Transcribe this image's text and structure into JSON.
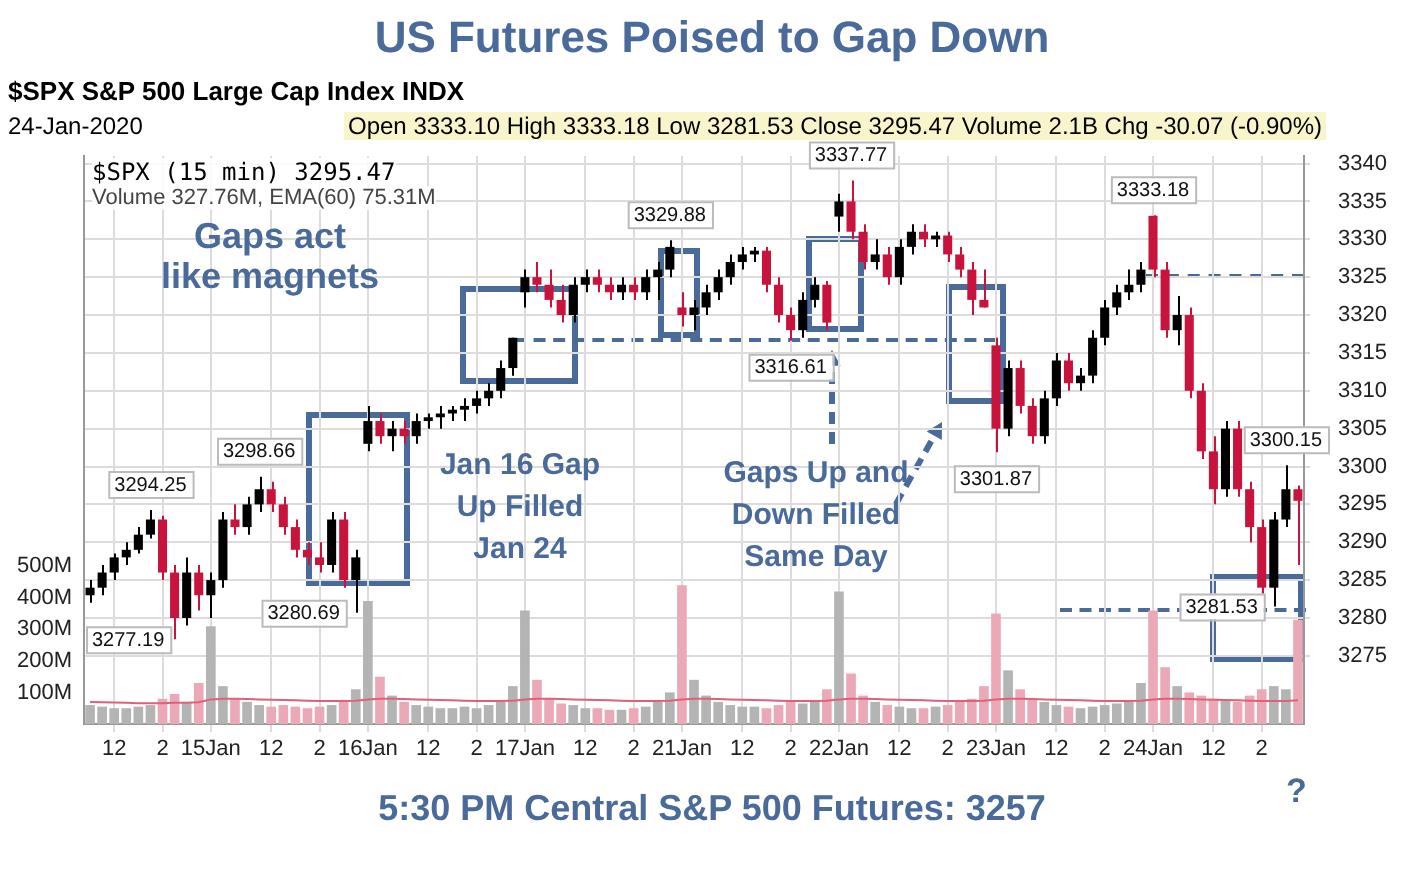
{
  "chart_data": {
    "type": "candlestick",
    "title": "US Futures Poised to Gap Down",
    "categories": [
      null,
      null,
      "12",
      null,
      null,
      null,
      "2",
      null,
      null,
      null,
      "15Jan",
      null,
      null,
      null,
      null,
      "12",
      null,
      null,
      null,
      "2",
      null,
      null,
      null,
      "16Jan",
      null,
      null,
      null,
      null,
      "12",
      null,
      null,
      null,
      "2",
      null,
      null,
      null,
      "17Jan",
      null,
      null,
      null,
      null,
      "12",
      null,
      null,
      null,
      "2",
      null,
      null,
      null,
      "21Jan",
      null,
      null,
      null,
      null,
      "12",
      null,
      null,
      null,
      "2",
      null,
      null,
      null,
      "22Jan",
      null,
      null,
      null,
      null,
      "12",
      null,
      null,
      null,
      "2",
      null,
      null,
      null,
      "23Jan",
      null,
      null,
      null,
      null,
      "12",
      null,
      null,
      null,
      "2",
      null,
      null,
      null,
      "24Jan",
      null,
      null,
      null,
      null,
      "12",
      null,
      null,
      null,
      "2",
      null,
      null,
      null
    ],
    "series": [
      {
        "ohlc": [
          [
            3283,
            3285,
            3282,
            3284
          ],
          [
            3284,
            3287,
            3283,
            3286
          ],
          [
            3286,
            3288.5,
            3285,
            3288
          ],
          [
            3288,
            3290,
            3287,
            3289
          ],
          [
            3289,
            3292,
            3288.5,
            3291
          ],
          [
            3291,
            3294.25,
            3290.5,
            3293
          ],
          [
            3293,
            3293.5,
            3285,
            3286
          ],
          [
            3286,
            3287,
            3277.19,
            3280
          ],
          [
            3280,
            3288,
            3279,
            3286
          ],
          [
            3286,
            3287,
            3281,
            3283
          ],
          [
            3283,
            3286,
            3280,
            3285
          ],
          [
            3285,
            3294,
            3284,
            3293
          ],
          [
            3293,
            3295,
            3291,
            3292
          ],
          [
            3292,
            3296,
            3291,
            3295
          ],
          [
            3295,
            3298.66,
            3294,
            3297
          ],
          [
            3297,
            3298,
            3294,
            3295
          ],
          [
            3295,
            3296,
            3291,
            3292
          ],
          [
            3292,
            3293,
            3288,
            3289
          ],
          [
            3289,
            3290,
            3287,
            3288
          ],
          [
            3288,
            3290,
            3286,
            3287
          ],
          [
            3287,
            3294,
            3286,
            3293
          ],
          [
            3293,
            3294,
            3284,
            3285
          ],
          [
            3285,
            3289,
            3280.69,
            3288
          ],
          [
            3303,
            3308,
            3302,
            3306
          ],
          [
            3306,
            3307,
            3303,
            3304
          ],
          [
            3304,
            3306,
            3302,
            3305
          ],
          [
            3305,
            3306,
            3303,
            3304
          ],
          [
            3304,
            3307,
            3303,
            3306
          ],
          [
            3306,
            3307,
            3305,
            3306.5
          ],
          [
            3306.5,
            3308,
            3305,
            3307
          ],
          [
            3307,
            3308,
            3306,
            3307.5
          ],
          [
            3307.5,
            3309,
            3306,
            3308
          ],
          [
            3308,
            3310,
            3307,
            3309
          ],
          [
            3309,
            3311,
            3308,
            3310
          ],
          [
            3310,
            3314,
            3309,
            3313
          ],
          [
            3313,
            3317,
            3312,
            3317
          ],
          [
            3323,
            3326,
            3321,
            3325
          ],
          [
            3325,
            3327,
            3323,
            3324
          ],
          [
            3324,
            3326,
            3321,
            3322
          ],
          [
            3322,
            3324,
            3319,
            3320
          ],
          [
            3320,
            3325,
            3319,
            3324
          ],
          [
            3324,
            3326,
            3323,
            3325
          ],
          [
            3325,
            3326,
            3323,
            3324
          ],
          [
            3324,
            3325,
            3322,
            3323
          ],
          [
            3323,
            3325,
            3322,
            3324
          ],
          [
            3324,
            3325,
            3322,
            3323
          ],
          [
            3323,
            3326,
            3322,
            3325
          ],
          [
            3325,
            3327,
            3322,
            3326
          ],
          [
            3326,
            3329.88,
            3325,
            3329
          ],
          [
            3321,
            3323,
            3318.5,
            3320
          ],
          [
            3320,
            3322,
            3318,
            3321
          ],
          [
            3321,
            3324,
            3320,
            3323
          ],
          [
            3323,
            3326,
            3322,
            3325
          ],
          [
            3325,
            3328,
            3324,
            3327
          ],
          [
            3327,
            3329,
            3326,
            3328
          ],
          [
            3328,
            3329,
            3327,
            3328.5
          ],
          [
            3328.5,
            3329,
            3323,
            3324
          ],
          [
            3324,
            3325,
            3319,
            3320
          ],
          [
            3320,
            3321,
            3316.61,
            3318
          ],
          [
            3318,
            3323,
            3317,
            3322
          ],
          [
            3322,
            3325,
            3321,
            3324
          ],
          [
            3324,
            3324.5,
            3318,
            3319
          ],
          [
            3333,
            3336,
            3331,
            3335
          ],
          [
            3335,
            3337.77,
            3330,
            3331
          ],
          [
            3331,
            3332,
            3326,
            3327
          ],
          [
            3327,
            3330,
            3326,
            3328
          ],
          [
            3328,
            3329,
            3324,
            3325
          ],
          [
            3325,
            3330,
            3324,
            3329
          ],
          [
            3329,
            3332,
            3328,
            3331
          ],
          [
            3331,
            3332,
            3329,
            3330
          ],
          [
            3330,
            3331,
            3329,
            3330.5
          ],
          [
            3330.5,
            3331,
            3327,
            3328
          ],
          [
            3328,
            3329,
            3325,
            3326
          ],
          [
            3326,
            3327,
            3320,
            3322
          ],
          [
            3322,
            3326,
            3321,
            3321
          ],
          [
            3316,
            3317,
            3301.87,
            3305
          ],
          [
            3305,
            3314,
            3304,
            3313
          ],
          [
            3313,
            3314,
            3307,
            3308
          ],
          [
            3308,
            3309,
            3303,
            3304
          ],
          [
            3304,
            3310,
            3303,
            3309
          ],
          [
            3309,
            3315,
            3308,
            3314
          ],
          [
            3314,
            3315,
            3310,
            3311
          ],
          [
            3311,
            3313,
            3310,
            3312
          ],
          [
            3312,
            3318,
            3311,
            3317
          ],
          [
            3317,
            3322,
            3316,
            3321
          ],
          [
            3321,
            3324,
            3320,
            3323
          ],
          [
            3323,
            3326,
            3322,
            3324
          ],
          [
            3324,
            3327,
            3323,
            3326
          ],
          [
            3333.1,
            3333.18,
            3325,
            3326
          ],
          [
            3326,
            3327,
            3317,
            3318
          ],
          [
            3318,
            3322.5,
            3316,
            3320
          ],
          [
            3320,
            3321,
            3309,
            3310
          ],
          [
            3310,
            3311,
            3301,
            3302
          ],
          [
            3302,
            3304,
            3295,
            3297
          ],
          [
            3297,
            3306,
            3296,
            3305
          ],
          [
            3305,
            3306,
            3296,
            3297
          ],
          [
            3297,
            3298,
            3290,
            3292
          ],
          [
            3292,
            3293,
            3283,
            3284
          ],
          [
            3284,
            3294,
            3281.53,
            3293
          ],
          [
            3293,
            3300.15,
            3292,
            3297
          ],
          [
            3297,
            3297.5,
            3287,
            3295.47
          ]
        ],
        "colors": [
          "#000000",
          "#000000",
          "#000000",
          "#000000",
          "#000000",
          "#000000",
          "#c8143c",
          "#c8143c",
          "#000000",
          "#c8143c",
          "#000000",
          "#000000",
          "#c8143c",
          "#000000",
          "#000000",
          "#c8143c",
          "#c8143c",
          "#c8143c",
          "#c8143c",
          "#c8143c",
          "#000000",
          "#c8143c",
          "#000000",
          "#000000",
          "#c8143c",
          "#000000",
          "#c8143c",
          "#000000",
          "#000000",
          "#000000",
          "#000000",
          "#000000",
          "#000000",
          "#000000",
          "#000000",
          "#000000",
          "#000000",
          "#c8143c",
          "#c8143c",
          "#c8143c",
          "#000000",
          "#000000",
          "#c8143c",
          "#c8143c",
          "#000000",
          "#c8143c",
          "#000000",
          "#000000",
          "#000000",
          "#c8143c",
          "#000000",
          "#000000",
          "#000000",
          "#000000",
          "#000000",
          "#000000",
          "#c8143c",
          "#c8143c",
          "#c8143c",
          "#000000",
          "#000000",
          "#c8143c",
          "#000000",
          "#c8143c",
          "#c8143c",
          "#000000",
          "#c8143c",
          "#000000",
          "#000000",
          "#c8143c",
          "#000000",
          "#c8143c",
          "#c8143c",
          "#c8143c",
          "#c8143c",
          "#c8143c",
          "#000000",
          "#c8143c",
          "#c8143c",
          "#000000",
          "#000000",
          "#c8143c",
          "#000000",
          "#000000",
          "#000000",
          "#000000",
          "#000000",
          "#000000",
          "#c8143c",
          "#c8143c",
          "#000000",
          "#c8143c",
          "#c8143c",
          "#c8143c",
          "#000000",
          "#c8143c",
          "#c8143c",
          "#c8143c",
          "#000000",
          "#000000",
          "#c8143c"
        ]
      },
      {
        "type": "bar",
        "axis": "y2",
        "values": [
          60,
          55,
          50,
          50,
          55,
          60,
          80,
          95,
          70,
          130,
          310,
          120,
          80,
          70,
          60,
          55,
          60,
          55,
          50,
          55,
          60,
          75,
          110,
          390,
          150,
          90,
          70,
          60,
          55,
          50,
          50,
          55,
          50,
          60,
          70,
          120,
          360,
          140,
          80,
          65,
          60,
          50,
          50,
          45,
          45,
          50,
          55,
          70,
          100,
          440,
          140,
          90,
          70,
          60,
          55,
          55,
          50,
          60,
          70,
          65,
          75,
          110,
          420,
          160,
          90,
          70,
          60,
          55,
          50,
          50,
          55,
          60,
          70,
          80,
          120,
          350,
          170,
          110,
          80,
          70,
          60,
          55,
          50,
          55,
          60,
          65,
          70,
          130,
          360,
          180,
          120,
          100,
          90,
          80,
          75,
          70,
          90,
          110,
          120,
          110,
          330
        ],
        "colors": [
          "#b4b4b4",
          "#b4b4b4",
          "#b4b4b4",
          "#b4b4b4",
          "#b4b4b4",
          "#b4b4b4",
          "#eba9b8",
          "#eba9b8",
          "#b4b4b4",
          "#eba9b8",
          "#b4b4b4",
          "#b4b4b4",
          "#eba9b8",
          "#b4b4b4",
          "#b4b4b4",
          "#eba9b8",
          "#eba9b8",
          "#eba9b8",
          "#eba9b8",
          "#eba9b8",
          "#b4b4b4",
          "#eba9b8",
          "#b4b4b4",
          "#b4b4b4",
          "#eba9b8",
          "#b4b4b4",
          "#eba9b8",
          "#b4b4b4",
          "#b4b4b4",
          "#b4b4b4",
          "#b4b4b4",
          "#b4b4b4",
          "#b4b4b4",
          "#b4b4b4",
          "#b4b4b4",
          "#b4b4b4",
          "#b4b4b4",
          "#eba9b8",
          "#eba9b8",
          "#eba9b8",
          "#b4b4b4",
          "#b4b4b4",
          "#eba9b8",
          "#eba9b8",
          "#b4b4b4",
          "#eba9b8",
          "#b4b4b4",
          "#b4b4b4",
          "#b4b4b4",
          "#eba9b8",
          "#b4b4b4",
          "#b4b4b4",
          "#b4b4b4",
          "#b4b4b4",
          "#b4b4b4",
          "#b4b4b4",
          "#eba9b8",
          "#eba9b8",
          "#eba9b8",
          "#b4b4b4",
          "#b4b4b4",
          "#eba9b8",
          "#b4b4b4",
          "#eba9b8",
          "#eba9b8",
          "#b4b4b4",
          "#eba9b8",
          "#b4b4b4",
          "#b4b4b4",
          "#eba9b8",
          "#b4b4b4",
          "#eba9b8",
          "#eba9b8",
          "#eba9b8",
          "#eba9b8",
          "#eba9b8",
          "#b4b4b4",
          "#eba9b8",
          "#eba9b8",
          "#b4b4b4",
          "#b4b4b4",
          "#eba9b8",
          "#b4b4b4",
          "#b4b4b4",
          "#b4b4b4",
          "#b4b4b4",
          "#b4b4b4",
          "#b4b4b4",
          "#eba9b8",
          "#eba9b8",
          "#b4b4b4",
          "#eba9b8",
          "#eba9b8",
          "#eba9b8",
          "#b4b4b4",
          "#eba9b8",
          "#eba9b8",
          "#eba9b8",
          "#b4b4b4",
          "#b4b4b4",
          "#eba9b8"
        ]
      },
      {
        "type": "line",
        "axis": "y2",
        "color": "#e0607a",
        "values": [
          70,
          69,
          68,
          67,
          66,
          66,
          66,
          67,
          67,
          69,
          78,
          80,
          80,
          79,
          78,
          77,
          76,
          75,
          74,
          73,
          73,
          73,
          74,
          78,
          80,
          80,
          79,
          78,
          77,
          76,
          75,
          74,
          73,
          73,
          73,
          74,
          78,
          80,
          80,
          79,
          78,
          77,
          76,
          75,
          74,
          73,
          73,
          73,
          74,
          78,
          80,
          80,
          79,
          78,
          77,
          76,
          75,
          74,
          73,
          73,
          73,
          74,
          78,
          80,
          80,
          79,
          78,
          77,
          76,
          75,
          74,
          73,
          73,
          73,
          74,
          78,
          80,
          80,
          79,
          78,
          77,
          76,
          75,
          74,
          73,
          73,
          73,
          74,
          78,
          80,
          80,
          79,
          78,
          77,
          76,
          75,
          74,
          73,
          73,
          73,
          75
        ]
      }
    ],
    "ylim": [
      3266,
      3341
    ],
    "yticks": [
      3275,
      3280,
      3285,
      3290,
      3295,
      3300,
      3305,
      3310,
      3315,
      3320,
      3325,
      3330,
      3335,
      3340
    ],
    "y2lim": [
      0,
      1800
    ],
    "y2ticks": [
      {
        "value": 100,
        "label": "100M"
      },
      {
        "value": 200,
        "label": "200M"
      },
      {
        "value": 300,
        "label": "300M"
      },
      {
        "value": 400,
        "label": "400M"
      },
      {
        "value": 500,
        "label": "500M"
      }
    ],
    "grid": true,
    "annotations": [
      "$SPX S&P 500 Large Cap Index INDX",
      "24-Jan-2020",
      "Open 3333.10 High 3333.18 Low 3281.53 Close 3295.47 Volume 2.1B Chg -30.07 (-0.90%)",
      "$SPX (15 min) 3295.47",
      "Volume 327.76M, EMA(60) 75.31M",
      "Gaps act like magnets",
      "Jan 16 Gap Up Filled Jan 24",
      "Gaps Up and Down Filled Same Day",
      "5:30 PM Central S&P 500 Futures: 3257",
      "?",
      {
        "text": "3294.25",
        "y": 3294.25
      },
      {
        "text": "3277.19",
        "y": 3277.19
      },
      {
        "text": "3298.66",
        "y": 3298.66
      },
      {
        "text": "3280.69",
        "y": 3280.69
      },
      {
        "text": "3329.88",
        "y": 3329.88
      },
      {
        "text": "3316.61",
        "y": 3316.61
      },
      {
        "text": "3337.77",
        "y": 3337.77
      },
      {
        "text": "3301.87",
        "y": 3301.87
      },
      {
        "text": "3333.18",
        "y": 3333.18
      },
      {
        "text": "3300.15",
        "y": 3300.15
      },
      {
        "text": "3281.53",
        "y": 3281.53
      }
    ]
  }
}
